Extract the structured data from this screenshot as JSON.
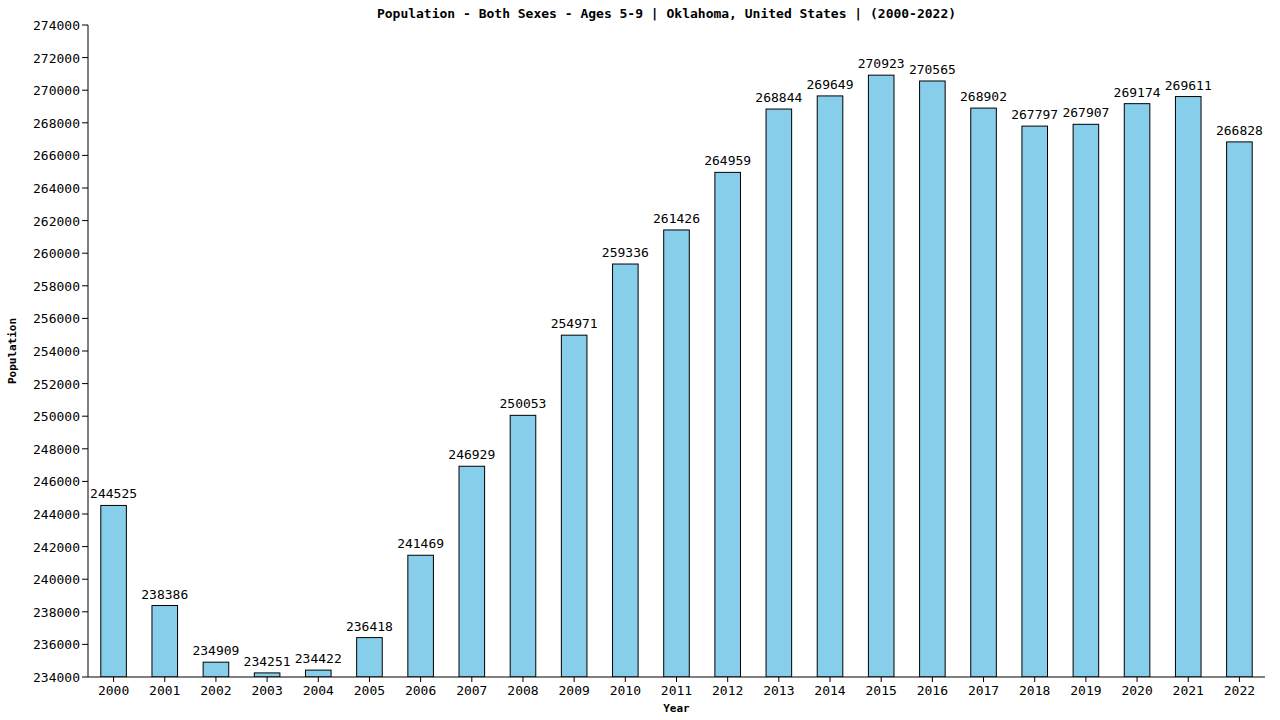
{
  "chart_data": {
    "type": "bar",
    "title": "Population - Both Sexes - Ages 5-9 | Oklahoma, United States |  (2000-2022)",
    "x_label": "Year",
    "y_label": "Population",
    "categories": [
      "2000",
      "2001",
      "2002",
      "2003",
      "2004",
      "2005",
      "2006",
      "2007",
      "2008",
      "2009",
      "2010",
      "2011",
      "2012",
      "2013",
      "2014",
      "2015",
      "2016",
      "2017",
      "2018",
      "2019",
      "2020",
      "2021",
      "2022"
    ],
    "values": [
      244525,
      238386,
      234909,
      234251,
      234422,
      236418,
      241469,
      246929,
      250053,
      254971,
      259336,
      261426,
      264959,
      268844,
      269649,
      270923,
      270565,
      268902,
      267797,
      267907,
      269174,
      269611,
      266828
    ],
    "color": "#87ceeb",
    "ylim": [
      234000,
      274000
    ],
    "yticks": [
      234000,
      236000,
      238000,
      240000,
      242000,
      244000,
      246000,
      248000,
      250000,
      252000,
      254000,
      256000,
      258000,
      260000,
      262000,
      264000,
      266000,
      268000,
      270000,
      272000,
      274000
    ],
    "grid": false,
    "data_labels": true
  }
}
